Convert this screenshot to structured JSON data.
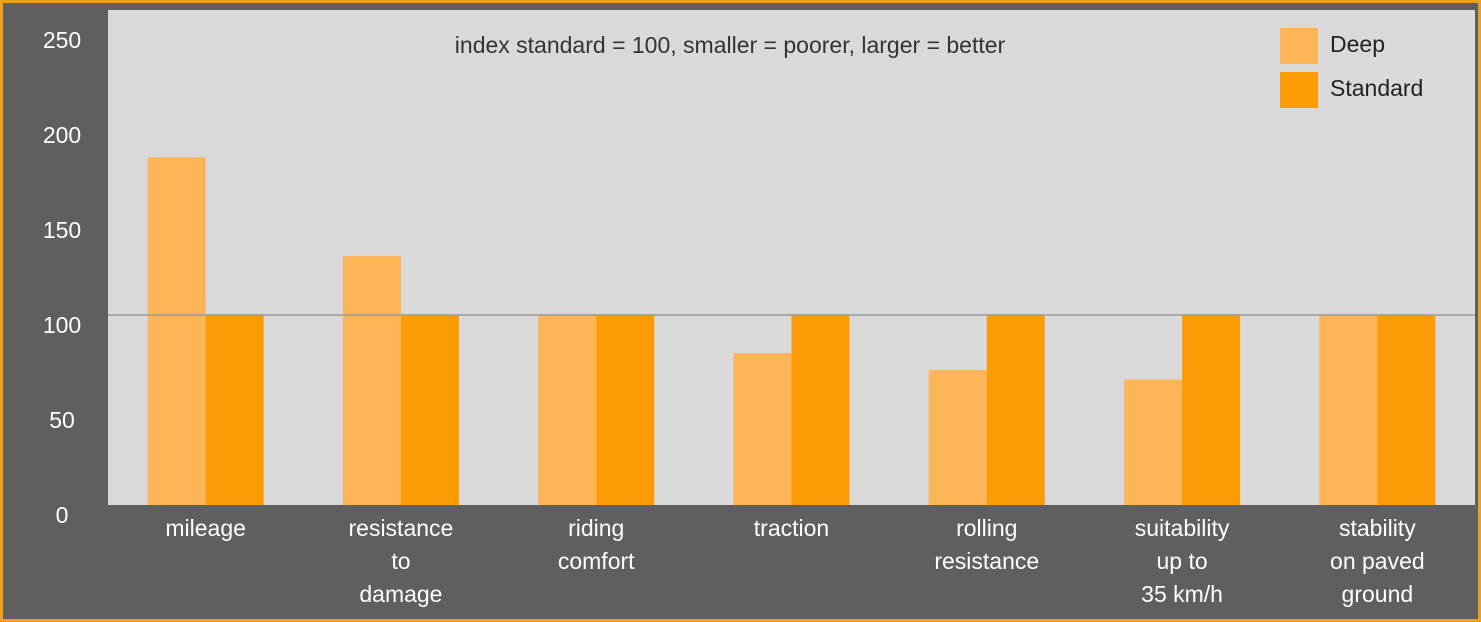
{
  "chart_data": {
    "type": "bar",
    "title": "index standard = 100, smaller = poorer, larger = better",
    "categories": [
      [
        "mileage"
      ],
      [
        "resistance",
        "to",
        "damage"
      ],
      [
        "riding",
        "comfort"
      ],
      [
        "traction"
      ],
      [
        "rolling",
        "resistance"
      ],
      [
        "suitability",
        "up to",
        "35 km/h"
      ],
      [
        "stability",
        "on paved",
        "ground"
      ]
    ],
    "series": [
      {
        "name": "Deep",
        "color": "#fdb558",
        "values": [
          183,
          131,
          100,
          80,
          71,
          66,
          100
        ]
      },
      {
        "name": "Standard",
        "color": "#fb9b06",
        "values": [
          100,
          100,
          100,
          100,
          100,
          100,
          100
        ]
      }
    ],
    "ylim": [
      0,
      250
    ],
    "yticks": [
      0,
      50,
      100,
      150,
      200,
      250
    ],
    "hline": 100,
    "legend": "top-right"
  }
}
